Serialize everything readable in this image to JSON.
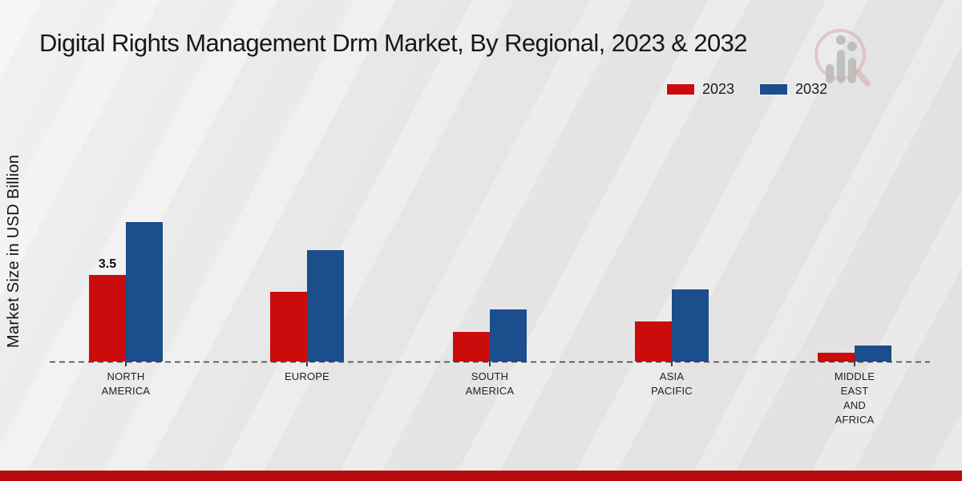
{
  "title": "Digital Rights Management Drm Market, By Regional, 2023 & 2032",
  "watermark_icon": "magnifier-bar-chart-logo",
  "footer": {
    "strip_color": "#b50d0d"
  },
  "chart_data": {
    "type": "bar",
    "title": "Digital Rights Management Drm Market, By Regional, 2023 & 2032",
    "xlabel": "",
    "ylabel": "Market Size in USD Billion",
    "legend_position": "top-right",
    "grid": false,
    "axis_style": "dashed-baseline-only",
    "ylim": [
      0,
      6
    ],
    "categories": [
      "NORTH AMERICA",
      "EUROPE",
      "SOUTH AMERICA",
      "ASIA PACIFIC",
      "MIDDLE EAST AND AFRICA"
    ],
    "category_label_lines": [
      [
        "NORTH",
        "AMERICA"
      ],
      [
        "EUROPE"
      ],
      [
        "SOUTH",
        "AMERICA"
      ],
      [
        "ASIA",
        "PACIFIC"
      ],
      [
        "MIDDLE",
        "EAST",
        "AND",
        "AFRICA"
      ]
    ],
    "series": [
      {
        "name": "2023",
        "color": "#cb0c0c",
        "values": [
          3.5,
          2.8,
          1.2,
          1.6,
          0.35
        ]
      },
      {
        "name": "2032",
        "color": "#1a4e8c",
        "values": [
          5.6,
          4.5,
          2.1,
          2.9,
          0.65
        ]
      }
    ],
    "annotations": [
      {
        "series": "2023",
        "category": "NORTH AMERICA",
        "text": "3.5"
      }
    ]
  }
}
